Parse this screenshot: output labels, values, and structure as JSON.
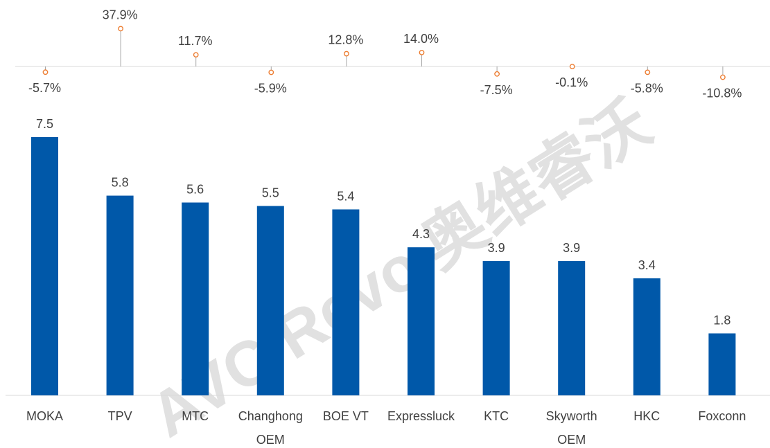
{
  "watermark": {
    "latin": "AVC Revo",
    "cjk": "奥维睿沃"
  },
  "colors": {
    "bar": "#0058A9",
    "marker": "#ED7D31",
    "stem": "#A6A6A6",
    "text": "#404040"
  },
  "chart_data": {
    "type": "bar",
    "categories": [
      [
        "MOKA"
      ],
      [
        "TPV"
      ],
      [
        "MTC"
      ],
      [
        "Changhong",
        "OEM"
      ],
      [
        "BOE VT"
      ],
      [
        "Expressluck"
      ],
      [
        "KTC"
      ],
      [
        "Skyworth",
        "OEM"
      ],
      [
        "HKC"
      ],
      [
        "Foxconn"
      ]
    ],
    "series": [
      {
        "values": [
          7.5,
          5.8,
          5.6,
          5.5,
          5.4,
          4.3,
          3.9,
          3.9,
          3.4,
          1.8
        ],
        "labels": [
          "7.5",
          "5.8",
          "5.6",
          "5.5",
          "5.4",
          "4.3",
          "3.9",
          "3.9",
          "3.4",
          "1.8"
        ]
      },
      {
        "values": [
          -5.7,
          37.9,
          11.7,
          -5.9,
          12.8,
          14.0,
          -7.5,
          -0.1,
          -5.8,
          -10.8
        ],
        "labels": [
          "-5.7%",
          "37.9%",
          "11.7%",
          "-5.9%",
          "12.8%",
          "14.0%",
          "-7.5%",
          "-0.1%",
          "-5.8%",
          "-10.8%"
        ]
      }
    ],
    "ylim": [
      0,
      7.5
    ],
    "y2lim": [
      -10.8,
      37.9
    ],
    "grid": false,
    "legend": "none"
  }
}
